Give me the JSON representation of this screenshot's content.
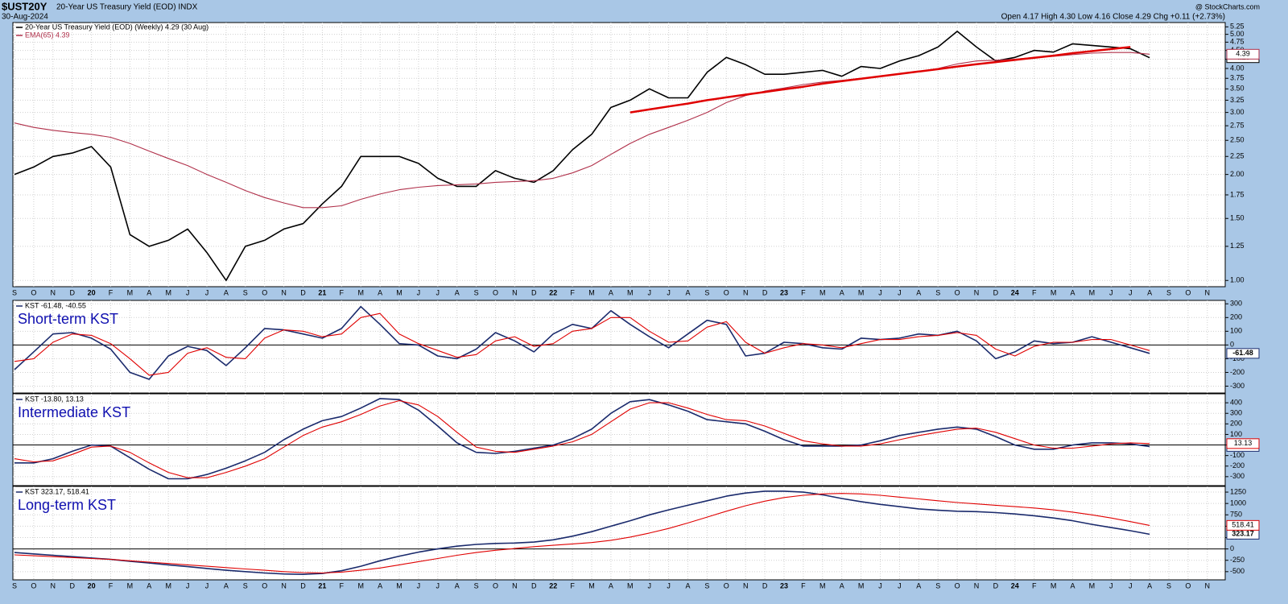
{
  "header": {
    "symbol": "$UST20Y",
    "name": "20-Year US Treasury Yield (EOD) INDX",
    "date": "30-Aug-2024",
    "quote": "Open 4.17 High 4.30 Low 4.16 Close 4.29 Chg +0.11 (+2.73%)",
    "credit": "@ StockCharts.com"
  },
  "categories": [
    "S",
    "O",
    "N",
    "D",
    "20",
    "F",
    "M",
    "A",
    "M",
    "J",
    "J",
    "A",
    "S",
    "O",
    "N",
    "D",
    "21",
    "F",
    "M",
    "A",
    "M",
    "J",
    "J",
    "A",
    "S",
    "O",
    "N",
    "D",
    "22",
    "F",
    "M",
    "A",
    "M",
    "J",
    "J",
    "A",
    "S",
    "O",
    "N",
    "D",
    "23",
    "F",
    "M",
    "A",
    "M",
    "J",
    "J",
    "A",
    "S",
    "O",
    "N",
    "D",
    "24",
    "F",
    "M",
    "A",
    "M",
    "J",
    "J",
    "A",
    "S",
    "O",
    "N"
  ],
  "chart_data": [
    {
      "type": "line",
      "log": true,
      "grid": true,
      "x_labels": true,
      "ylim": [
        0.96,
        5.4
      ],
      "yticks": [
        {
          "value": 1,
          "label": "1.00"
        },
        {
          "value": 1.25,
          "label": "1.25"
        },
        {
          "value": 1.5,
          "label": "1.50"
        },
        {
          "value": 1.75,
          "label": "1.75"
        },
        {
          "value": 2,
          "label": "2.00"
        },
        {
          "value": 2.25,
          "label": "2.25"
        },
        {
          "value": 2.5,
          "label": "2.50"
        },
        {
          "value": 2.75,
          "label": "2.75"
        },
        {
          "value": 3,
          "label": "3.00"
        },
        {
          "value": 3.25,
          "label": "3.25"
        },
        {
          "value": 3.5,
          "label": "3.50"
        },
        {
          "value": 3.75,
          "label": "3.75"
        },
        {
          "value": 4,
          "label": "4.00"
        },
        {
          "value": 4.25,
          "label": "4.25"
        },
        {
          "value": 4.5,
          "label": "4.50"
        },
        {
          "value": 4.75,
          "label": "4.75"
        },
        {
          "value": 5,
          "label": "5.00"
        },
        {
          "value": 5.25,
          "label": "5.25"
        }
      ],
      "series": [
        {
          "name": "20-Year US Treasury Yield (EOD) (Weekly) 4.29 (30 Aug)",
          "color": "#000000",
          "end_label": "4.29",
          "values": [
            2.0,
            2.1,
            2.25,
            2.3,
            2.4,
            2.1,
            1.35,
            1.25,
            1.3,
            1.4,
            1.2,
            1.0,
            1.25,
            1.3,
            1.4,
            1.45,
            1.65,
            1.85,
            2.25,
            2.25,
            2.25,
            2.15,
            1.95,
            1.85,
            1.85,
            2.05,
            1.95,
            1.9,
            2.05,
            2.35,
            2.6,
            3.1,
            3.25,
            3.5,
            3.3,
            3.3,
            3.9,
            4.3,
            4.1,
            3.85,
            3.85,
            3.9,
            3.95,
            3.8,
            4.05,
            4.0,
            4.2,
            4.35,
            4.6,
            5.1,
            4.6,
            4.2,
            4.3,
            4.5,
            4.45,
            4.7,
            4.65,
            4.6,
            4.55,
            4.29,
            null,
            null,
            null
          ]
        },
        {
          "name": "EMA(65) 4.39",
          "color": "#b0304a",
          "end_label": "4.39",
          "values": [
            2.8,
            2.72,
            2.67,
            2.63,
            2.6,
            2.55,
            2.45,
            2.33,
            2.22,
            2.12,
            2.0,
            1.9,
            1.8,
            1.72,
            1.66,
            1.61,
            1.61,
            1.63,
            1.7,
            1.76,
            1.81,
            1.84,
            1.86,
            1.87,
            1.88,
            1.9,
            1.91,
            1.92,
            1.95,
            2.02,
            2.12,
            2.28,
            2.45,
            2.6,
            2.72,
            2.85,
            3.0,
            3.2,
            3.35,
            3.45,
            3.52,
            3.6,
            3.66,
            3.7,
            3.75,
            3.8,
            3.85,
            3.92,
            4.0,
            4.12,
            4.2,
            4.22,
            4.25,
            4.3,
            4.33,
            4.38,
            4.42,
            4.44,
            4.44,
            4.39,
            null,
            null,
            null
          ]
        },
        {
          "color": "#e00000",
          "values": [
            null,
            null,
            null,
            null,
            null,
            null,
            null,
            null,
            null,
            null,
            null,
            null,
            null,
            null,
            null,
            null,
            null,
            null,
            null,
            null,
            null,
            null,
            null,
            null,
            null,
            null,
            null,
            null,
            null,
            null,
            null,
            null,
            3.0,
            3.06,
            3.12,
            3.18,
            3.25,
            3.31,
            3.37,
            3.43,
            3.49,
            3.55,
            3.62,
            3.68,
            3.74,
            3.8,
            3.86,
            3.92,
            3.98,
            4.05,
            4.11,
            4.17,
            4.23,
            4.29,
            4.35,
            4.42,
            4.48,
            4.54,
            4.6,
            null,
            null,
            null,
            null
          ]
        }
      ]
    },
    {
      "type": "line",
      "grid": true,
      "title": "Short-term KST",
      "legend": "KST -61.48, -40.55",
      "ylim": [
        -350,
        325
      ],
      "yticks": [
        -300,
        -200,
        -100,
        0,
        100,
        200,
        300
      ],
      "series": [
        {
          "color": "#1a2a6c",
          "end_label": "-61.48",
          "values": [
            -180,
            -50,
            80,
            90,
            50,
            -30,
            -200,
            -250,
            -80,
            -10,
            -40,
            -150,
            -20,
            120,
            110,
            80,
            50,
            120,
            280,
            150,
            10,
            0,
            -80,
            -100,
            -30,
            90,
            30,
            -50,
            80,
            150,
            120,
            250,
            150,
            60,
            -20,
            80,
            180,
            150,
            -80,
            -60,
            20,
            10,
            -20,
            -30,
            50,
            40,
            50,
            80,
            70,
            100,
            30,
            -100,
            -50,
            30,
            10,
            20,
            60,
            20,
            -20,
            -61.48,
            null,
            null,
            null
          ]
        },
        {
          "color": "#e00000",
          "values": [
            -120,
            -100,
            20,
            80,
            70,
            10,
            -100,
            -220,
            -200,
            -60,
            -20,
            -90,
            -100,
            50,
            110,
            100,
            60,
            80,
            200,
            230,
            80,
            10,
            -40,
            -90,
            -70,
            30,
            60,
            -10,
            10,
            100,
            120,
            200,
            200,
            100,
            20,
            30,
            130,
            170,
            20,
            -60,
            -20,
            10,
            0,
            -20,
            10,
            40,
            40,
            60,
            70,
            90,
            70,
            -30,
            -80,
            -10,
            20,
            20,
            40,
            40,
            0,
            -40.55,
            null,
            null,
            null
          ]
        }
      ]
    },
    {
      "type": "line",
      "grid": true,
      "title": "Intermediate KST",
      "legend": "KST -13.80, 13.13",
      "ylim": [
        -385,
        485
      ],
      "yticks": [
        -300,
        -200,
        -100,
        0,
        100,
        200,
        300,
        400
      ],
      "series": [
        {
          "color": "#1a2a6c",
          "end_label": "-13.80",
          "values": [
            -170,
            -170,
            -130,
            -60,
            0,
            -10,
            -120,
            -230,
            -320,
            -320,
            -280,
            -220,
            -150,
            -70,
            50,
            150,
            230,
            270,
            350,
            440,
            430,
            330,
            180,
            20,
            -70,
            -80,
            -60,
            -30,
            0,
            60,
            150,
            300,
            410,
            430,
            380,
            320,
            240,
            220,
            200,
            130,
            50,
            -10,
            -10,
            -10,
            0,
            40,
            90,
            120,
            150,
            170,
            150,
            80,
            0,
            -40,
            -40,
            0,
            20,
            20,
            10,
            -13.8,
            null,
            null,
            null
          ]
        },
        {
          "color": "#e00000",
          "end_label": "13.13",
          "values": [
            -130,
            -160,
            -150,
            -90,
            -20,
            -10,
            -70,
            -170,
            -260,
            -310,
            -310,
            -260,
            -200,
            -130,
            -20,
            90,
            170,
            220,
            290,
            370,
            420,
            380,
            270,
            120,
            -20,
            -60,
            -70,
            -40,
            -10,
            30,
            100,
            220,
            340,
            400,
            400,
            350,
            290,
            240,
            230,
            180,
            110,
            40,
            10,
            -10,
            -10,
            10,
            50,
            90,
            120,
            150,
            160,
            120,
            60,
            0,
            -30,
            -30,
            -10,
            10,
            20,
            13.13,
            null,
            null,
            null
          ]
        }
      ]
    },
    {
      "type": "line",
      "grid": true,
      "x_labels": true,
      "title": "Long-term KST",
      "legend": "KST 323.17, 518.41",
      "ylim": [
        -680,
        1375
      ],
      "yticks": [
        -500,
        -250,
        0,
        250,
        500,
        750,
        1000,
        1250
      ],
      "series": [
        {
          "color": "#1a2a6c",
          "end_label": "323.17",
          "values": [
            -80,
            -110,
            -140,
            -170,
            -200,
            -230,
            -270,
            -310,
            -350,
            -390,
            -430,
            -470,
            -500,
            -530,
            -550,
            -560,
            -540,
            -480,
            -380,
            -260,
            -160,
            -70,
            0,
            60,
            100,
            120,
            130,
            150,
            200,
            280,
            380,
            500,
            620,
            750,
            860,
            960,
            1060,
            1160,
            1230,
            1270,
            1270,
            1250,
            1190,
            1110,
            1040,
            980,
            930,
            880,
            850,
            830,
            820,
            800,
            770,
            730,
            680,
            620,
            540,
            470,
            400,
            323.17,
            null,
            null,
            null
          ]
        },
        {
          "color": "#e00000",
          "end_label": "518.41",
          "values": [
            -130,
            -150,
            -170,
            -190,
            -210,
            -230,
            -260,
            -290,
            -320,
            -350,
            -380,
            -410,
            -440,
            -470,
            -500,
            -520,
            -530,
            -510,
            -470,
            -420,
            -350,
            -280,
            -210,
            -140,
            -80,
            -30,
            10,
            50,
            80,
            110,
            140,
            190,
            260,
            350,
            450,
            570,
            700,
            830,
            950,
            1050,
            1130,
            1180,
            1210,
            1220,
            1210,
            1180,
            1140,
            1100,
            1060,
            1020,
            990,
            960,
            930,
            900,
            860,
            810,
            750,
            680,
            600,
            518.41,
            null,
            null,
            null
          ]
        }
      ]
    }
  ]
}
